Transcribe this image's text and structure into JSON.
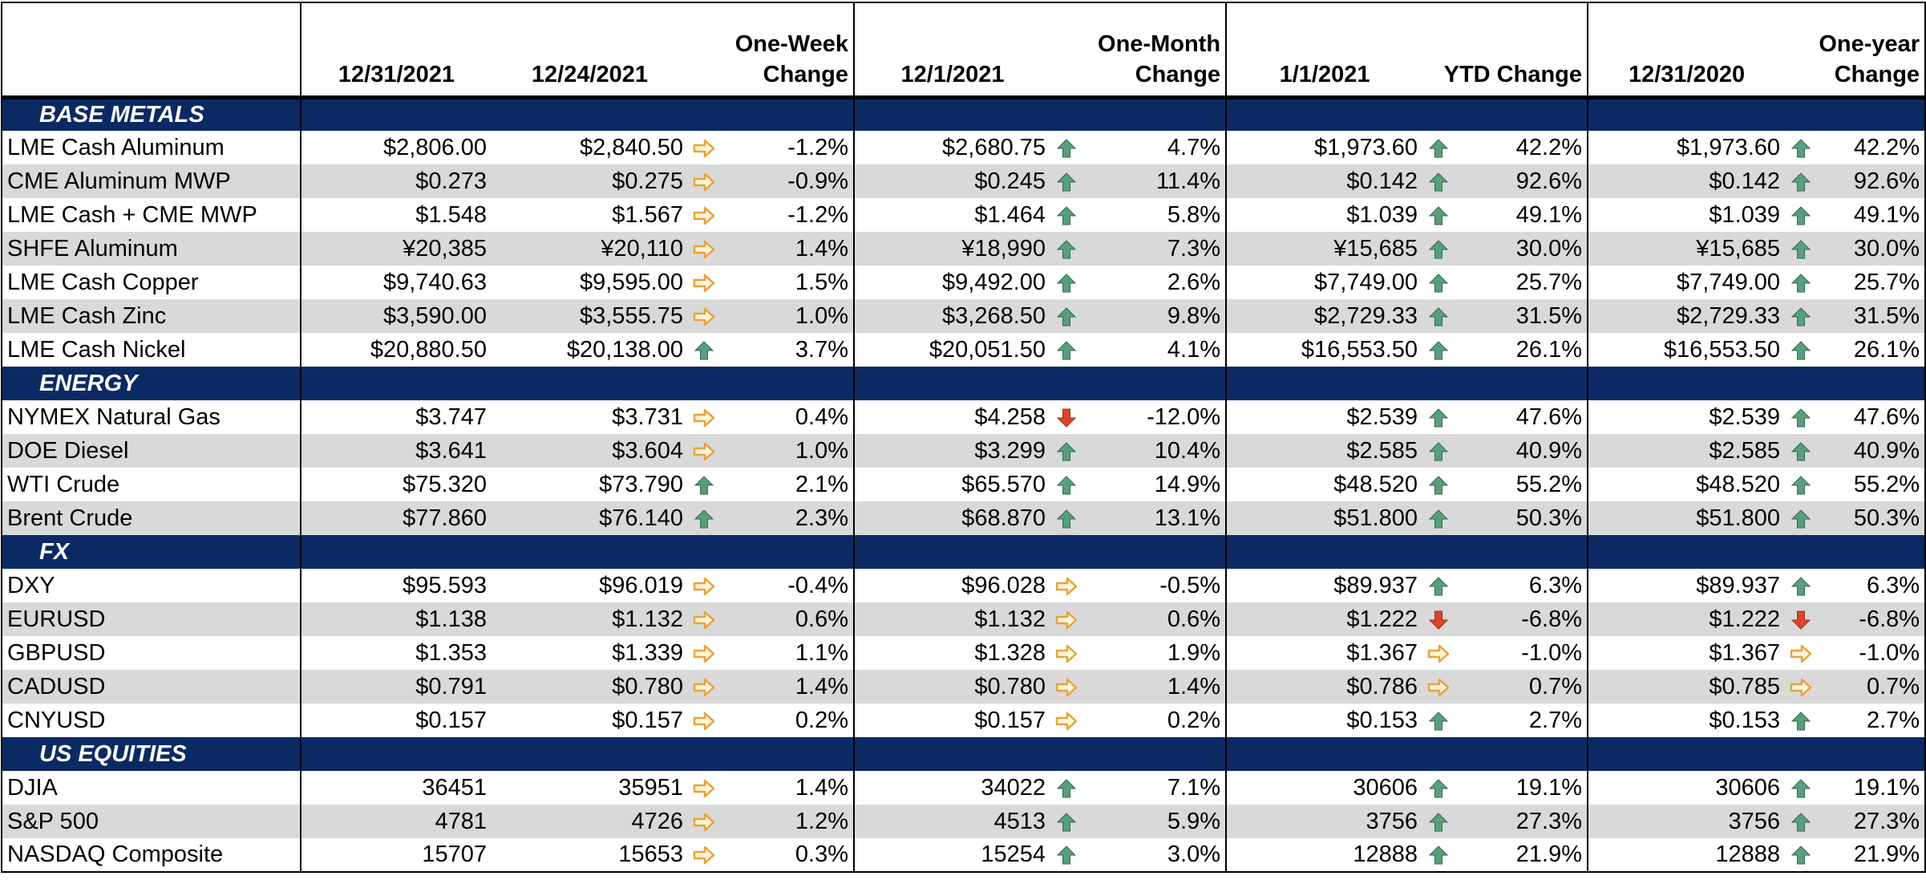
{
  "colors": {
    "section_bg": "#0b2a63",
    "alt_row_bg": "#d9d9d9",
    "up": "#5a9e7c",
    "down": "#d9472b",
    "flat": "#e8a33a"
  },
  "headers": {
    "c1": "12/31/2021",
    "c2": "12/24/2021",
    "c3a": "One-Week",
    "c3b": "Change",
    "c4": "12/1/2021",
    "c5a": "One-Month",
    "c5b": "Change",
    "c6": "1/1/2021",
    "c7": "YTD Change",
    "c8": "12/31/2020",
    "c9a": "One-year",
    "c9b": "Change"
  },
  "sections": [
    {
      "title": "BASE METALS",
      "rows": [
        {
          "name": "LME Cash Aluminum",
          "v1": "$2,806.00",
          "v2": "$2,840.50",
          "a1": "flat",
          "p1": "-1.2%",
          "v3": "$2,680.75",
          "a2": "up",
          "p2": "4.7%",
          "v4": "$1,973.60",
          "a3": "up",
          "p3": "42.2%",
          "v5": "$1,973.60",
          "a4": "up",
          "p4": "42.2%"
        },
        {
          "name": "CME Aluminum MWP",
          "v1": "$0.273",
          "v2": "$0.275",
          "a1": "flat",
          "p1": "-0.9%",
          "v3": "$0.245",
          "a2": "up",
          "p2": "11.4%",
          "v4": "$0.142",
          "a3": "up",
          "p3": "92.6%",
          "v5": "$0.142",
          "a4": "up",
          "p4": "92.6%"
        },
        {
          "name": "LME Cash + CME MWP",
          "v1": "$1.548",
          "v2": "$1.567",
          "a1": "flat",
          "p1": "-1.2%",
          "v3": "$1.464",
          "a2": "up",
          "p2": "5.8%",
          "v4": "$1.039",
          "a3": "up",
          "p3": "49.1%",
          "v5": "$1.039",
          "a4": "up",
          "p4": "49.1%"
        },
        {
          "name": "SHFE Aluminum",
          "v1": "¥20,385",
          "v2": "¥20,110",
          "a1": "flat",
          "p1": "1.4%",
          "v3": "¥18,990",
          "a2": "up",
          "p2": "7.3%",
          "v4": "¥15,685",
          "a3": "up",
          "p3": "30.0%",
          "v5": "¥15,685",
          "a4": "up",
          "p4": "30.0%"
        },
        {
          "name": "LME Cash Copper",
          "v1": "$9,740.63",
          "v2": "$9,595.00",
          "a1": "flat",
          "p1": "1.5%",
          "v3": "$9,492.00",
          "a2": "up",
          "p2": "2.6%",
          "v4": "$7,749.00",
          "a3": "up",
          "p3": "25.7%",
          "v5": "$7,749.00",
          "a4": "up",
          "p4": "25.7%"
        },
        {
          "name": "LME Cash Zinc",
          "v1": "$3,590.00",
          "v2": "$3,555.75",
          "a1": "flat",
          "p1": "1.0%",
          "v3": "$3,268.50",
          "a2": "up",
          "p2": "9.8%",
          "v4": "$2,729.33",
          "a3": "up",
          "p3": "31.5%",
          "v5": "$2,729.33",
          "a4": "up",
          "p4": "31.5%"
        },
        {
          "name": "LME Cash Nickel",
          "v1": "$20,880.50",
          "v2": "$20,138.00",
          "a1": "up",
          "p1": "3.7%",
          "v3": "$20,051.50",
          "a2": "up",
          "p2": "4.1%",
          "v4": "$16,553.50",
          "a3": "up",
          "p3": "26.1%",
          "v5": "$16,553.50",
          "a4": "up",
          "p4": "26.1%"
        }
      ]
    },
    {
      "title": "ENERGY",
      "rows": [
        {
          "name": "NYMEX Natural Gas",
          "v1": "$3.747",
          "v2": "$3.731",
          "a1": "flat",
          "p1": "0.4%",
          "v3": "$4.258",
          "a2": "down",
          "p2": "-12.0%",
          "v4": "$2.539",
          "a3": "up",
          "p3": "47.6%",
          "v5": "$2.539",
          "a4": "up",
          "p4": "47.6%"
        },
        {
          "name": "DOE Diesel",
          "v1": "$3.641",
          "v2": "$3.604",
          "a1": "flat",
          "p1": "1.0%",
          "v3": "$3.299",
          "a2": "up",
          "p2": "10.4%",
          "v4": "$2.585",
          "a3": "up",
          "p3": "40.9%",
          "v5": "$2.585",
          "a4": "up",
          "p4": "40.9%"
        },
        {
          "name": "WTI Crude",
          "v1": "$75.320",
          "v2": "$73.790",
          "a1": "up",
          "p1": "2.1%",
          "v3": "$65.570",
          "a2": "up",
          "p2": "14.9%",
          "v4": "$48.520",
          "a3": "up",
          "p3": "55.2%",
          "v5": "$48.520",
          "a4": "up",
          "p4": "55.2%"
        },
        {
          "name": "Brent Crude",
          "v1": "$77.860",
          "v2": "$76.140",
          "a1": "up",
          "p1": "2.3%",
          "v3": "$68.870",
          "a2": "up",
          "p2": "13.1%",
          "v4": "$51.800",
          "a3": "up",
          "p3": "50.3%",
          "v5": "$51.800",
          "a4": "up",
          "p4": "50.3%"
        }
      ]
    },
    {
      "title": "FX",
      "rows": [
        {
          "name": "DXY",
          "v1": "$95.593",
          "v2": "$96.019",
          "a1": "flat",
          "p1": "-0.4%",
          "v3": "$96.028",
          "a2": "flat",
          "p2": "-0.5%",
          "v4": "$89.937",
          "a3": "up",
          "p3": "6.3%",
          "v5": "$89.937",
          "a4": "up",
          "p4": "6.3%"
        },
        {
          "name": "EURUSD",
          "v1": "$1.138",
          "v2": "$1.132",
          "a1": "flat",
          "p1": "0.6%",
          "v3": "$1.132",
          "a2": "flat",
          "p2": "0.6%",
          "v4": "$1.222",
          "a3": "down",
          "p3": "-6.8%",
          "v5": "$1.222",
          "a4": "down",
          "p4": "-6.8%"
        },
        {
          "name": "GBPUSD",
          "v1": "$1.353",
          "v2": "$1.339",
          "a1": "flat",
          "p1": "1.1%",
          "v3": "$1.328",
          "a2": "flat",
          "p2": "1.9%",
          "v4": "$1.367",
          "a3": "flat",
          "p3": "-1.0%",
          "v5": "$1.367",
          "a4": "flat",
          "p4": "-1.0%"
        },
        {
          "name": "CADUSD",
          "v1": "$0.791",
          "v2": "$0.780",
          "a1": "flat",
          "p1": "1.4%",
          "v3": "$0.780",
          "a2": "flat",
          "p2": "1.4%",
          "v4": "$0.786",
          "a3": "flat",
          "p3": "0.7%",
          "v5": "$0.785",
          "a4": "flat",
          "p4": "0.7%"
        },
        {
          "name": "CNYUSD",
          "v1": "$0.157",
          "v2": "$0.157",
          "a1": "flat",
          "p1": "0.2%",
          "v3": "$0.157",
          "a2": "flat",
          "p2": "0.2%",
          "v4": "$0.153",
          "a3": "up",
          "p3": "2.7%",
          "v5": "$0.153",
          "a4": "up",
          "p4": "2.7%"
        }
      ]
    },
    {
      "title": "US EQUITIES",
      "rows": [
        {
          "name": "DJIA",
          "v1": "36451",
          "v2": "35951",
          "a1": "flat",
          "p1": "1.4%",
          "v3": "34022",
          "a2": "up",
          "p2": "7.1%",
          "v4": "30606",
          "a3": "up",
          "p3": "19.1%",
          "v5": "30606",
          "a4": "up",
          "p4": "19.1%"
        },
        {
          "name": "S&P 500",
          "v1": "4781",
          "v2": "4726",
          "a1": "flat",
          "p1": "1.2%",
          "v3": "4513",
          "a2": "up",
          "p2": "5.9%",
          "v4": "3756",
          "a3": "up",
          "p3": "27.3%",
          "v5": "3756",
          "a4": "up",
          "p4": "27.3%"
        },
        {
          "name": "NASDAQ Composite",
          "v1": "15707",
          "v2": "15653",
          "a1": "flat",
          "p1": "0.3%",
          "v3": "15254",
          "a2": "up",
          "p2": "3.0%",
          "v4": "12888",
          "a3": "up",
          "p3": "21.9%",
          "v5": "12888",
          "a4": "up",
          "p4": "21.9%"
        }
      ]
    }
  ]
}
